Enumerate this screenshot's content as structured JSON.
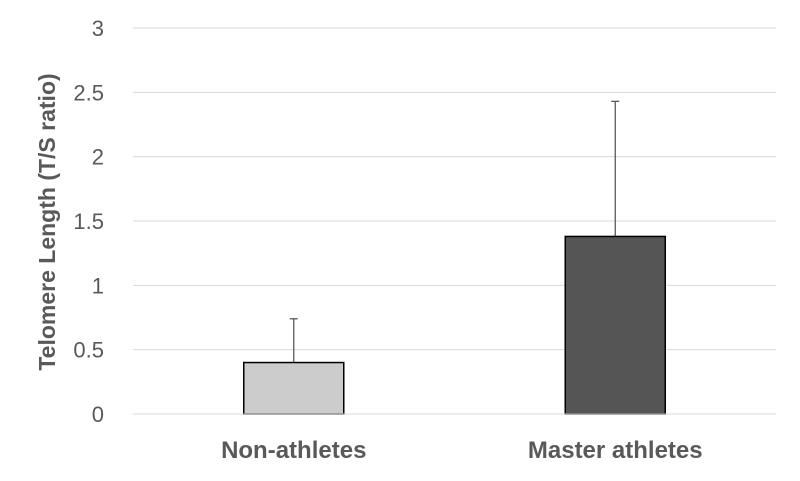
{
  "chart_data": {
    "type": "bar",
    "title": "",
    "xlabel": "",
    "ylabel": "Telomere Length (T/S ratio)",
    "categories": [
      "Non-athletes",
      "Master athletes"
    ],
    "values": [
      0.4,
      1.38
    ],
    "error_bars_upper": [
      0.34,
      1.05
    ],
    "bar_colors": [
      "#cccccc",
      "#555555"
    ],
    "ylim": [
      0,
      3
    ],
    "yticks": [
      0,
      0.5,
      1,
      1.5,
      2,
      2.5,
      3
    ],
    "ytick_labels": [
      "0",
      "0.5",
      "1",
      "1.5",
      "2",
      "2.5",
      "3"
    ],
    "grid": true,
    "legend": "none"
  }
}
